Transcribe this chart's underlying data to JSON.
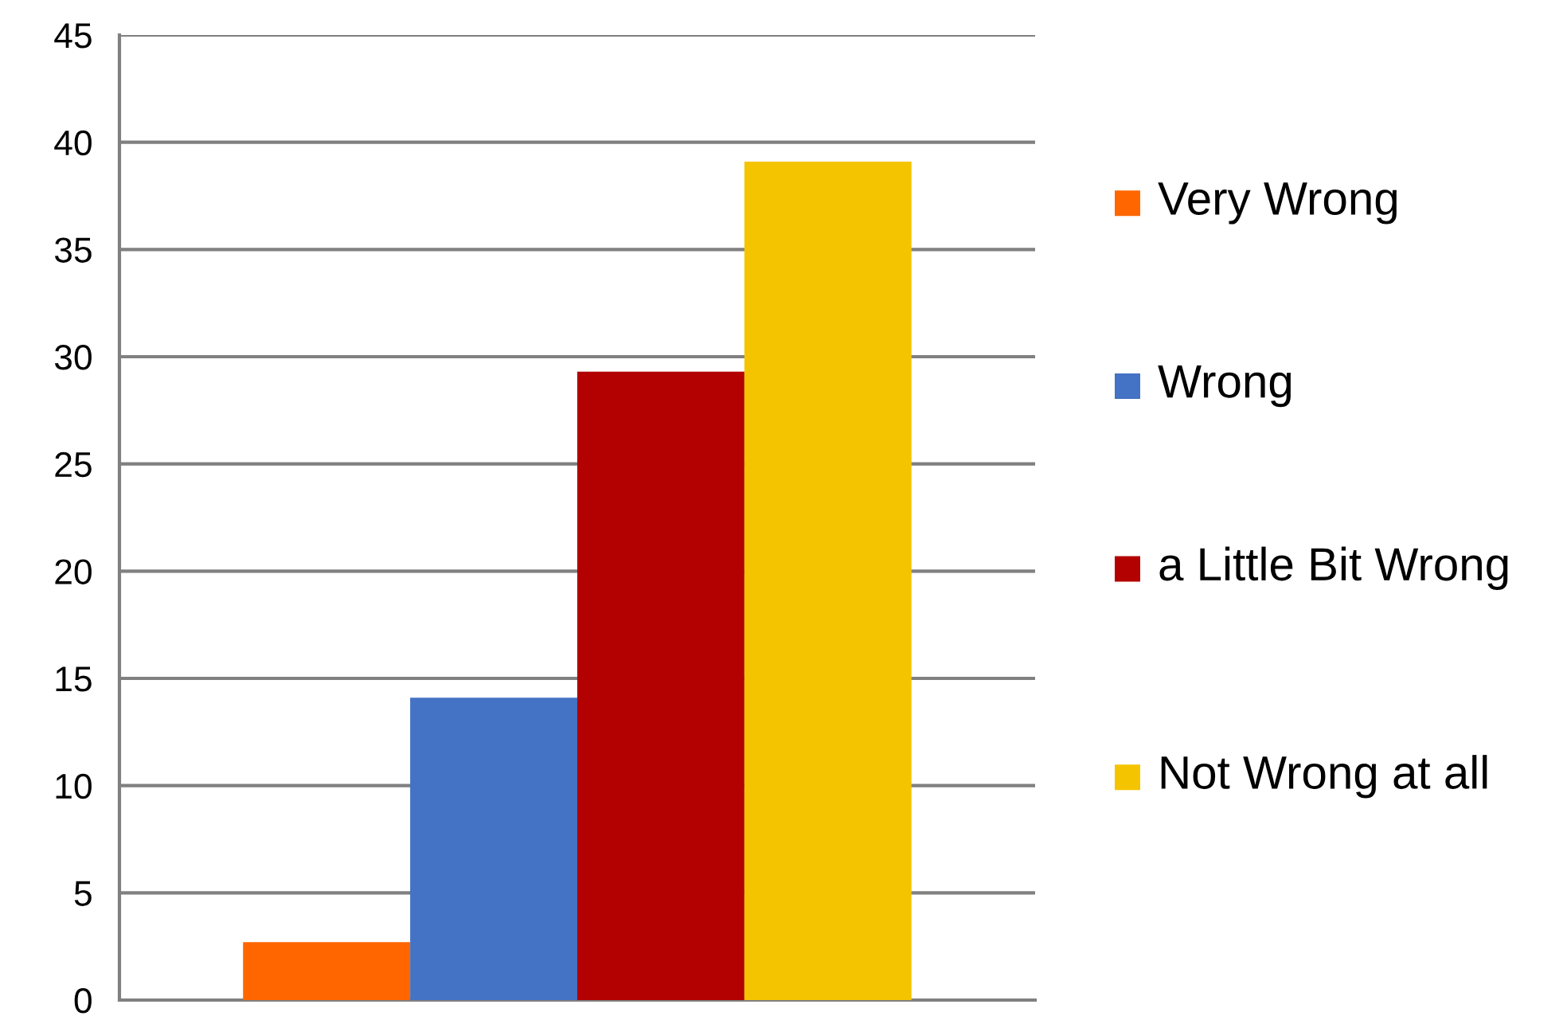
{
  "chart_data": {
    "type": "bar",
    "categories": [
      null
    ],
    "series": [
      {
        "name": "Very Wrong",
        "color": "#ff6600",
        "values": [
          2.7
        ]
      },
      {
        "name": "Wrong",
        "color": "#4472c4",
        "values": [
          14.1
        ]
      },
      {
        "name": "a Little Bit Wrong",
        "color": "#b30000",
        "values": [
          29.3
        ]
      },
      {
        "name": "Not Wrong at all",
        "color": "#f5c400",
        "values": [
          39.1
        ]
      }
    ],
    "ylim": [
      0,
      45
    ],
    "yticks": [
      0,
      5,
      10,
      15,
      20,
      25,
      30,
      35,
      40,
      45
    ],
    "grid": "y",
    "legend": "right"
  }
}
